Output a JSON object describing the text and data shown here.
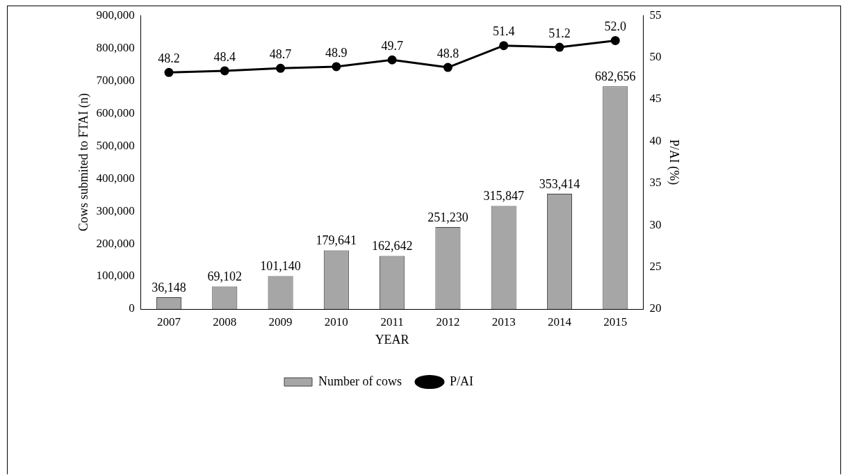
{
  "chart_data": {
    "type": "bar",
    "xlabel": "YEAR",
    "ylabel": "Cows submited to FTAI (n)",
    "y2label": "P/AI (%)",
    "categories": [
      "2007",
      "2008",
      "2009",
      "2010",
      "2011",
      "2012",
      "2013",
      "2014",
      "2015"
    ],
    "series": [
      {
        "name": "Number of cows",
        "color": "#a6a6a6",
        "values": [
          36148,
          69102,
          101140,
          179641,
          162642,
          251230,
          315847,
          353414,
          682656
        ],
        "value_labels": [
          "36,148",
          "69,102",
          "101,140",
          "179,641",
          "162,642",
          "251,230",
          "315,847",
          "353,414",
          "682,656"
        ]
      },
      {
        "name": "P/AI",
        "type": "line",
        "axis": "y2",
        "color": "#000000",
        "marker": "circle",
        "values": [
          48.2,
          48.4,
          48.7,
          48.9,
          49.7,
          48.8,
          51.4,
          51.2,
          52.0
        ],
        "value_labels": [
          "48.2",
          "48.4",
          "48.7",
          "48.9",
          "49.7",
          "48.8",
          "51.4",
          "51.2",
          "52.0"
        ]
      }
    ],
    "ylim": [
      0,
      900000
    ],
    "yticks": [
      {
        "value": 0,
        "label": "0"
      },
      {
        "value": 100000,
        "label": "100,000"
      },
      {
        "value": 200000,
        "label": "200,000"
      },
      {
        "value": 300000,
        "label": "300,000"
      },
      {
        "value": 400000,
        "label": "400,000"
      },
      {
        "value": 500000,
        "label": "500,000"
      },
      {
        "value": 600000,
        "label": "600,000"
      },
      {
        "value": 700000,
        "label": "700,000"
      },
      {
        "value": 800000,
        "label": "800,000"
      },
      {
        "value": 900000,
        "label": "900,000"
      }
    ],
    "y2lim": [
      20,
      55
    ],
    "y2ticks": [
      20,
      25,
      30,
      35,
      40,
      45,
      50,
      55
    ],
    "grid": false,
    "legend": "bottom"
  }
}
